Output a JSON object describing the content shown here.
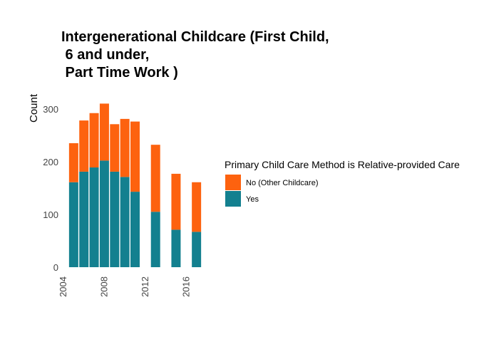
{
  "chart_data": {
    "type": "bar",
    "stacked": true,
    "title_lines": [
      "Intergenerational Childcare (First Child,",
      " 6 and under,",
      " Part Time Work )"
    ],
    "xlabel": "",
    "ylabel": "Count",
    "xlim": [
      2004,
      2018
    ],
    "ylim": [
      0,
      320
    ],
    "x_ticks": [
      2004,
      2008,
      2012,
      2016
    ],
    "y_ticks": [
      0,
      100,
      200,
      300
    ],
    "grid": false,
    "x": [
      2005,
      2006,
      2007,
      2008,
      2009,
      2010,
      2011,
      2013,
      2015,
      2017
    ],
    "series": [
      {
        "name": "Yes",
        "color": "#13808f",
        "values": [
          161,
          181,
          189,
          202,
          181,
          171,
          143,
          105,
          71,
          67
        ]
      },
      {
        "name": "No (Other Childcare)",
        "color": "#fd620f",
        "values": [
          74,
          97,
          103,
          108,
          90,
          110,
          133,
          127,
          106,
          94
        ]
      }
    ],
    "legend": {
      "title": "Primary Child Care Method is Relative-provided Care",
      "position": "right",
      "entries": [
        "No (Other Childcare)",
        "Yes"
      ]
    }
  }
}
